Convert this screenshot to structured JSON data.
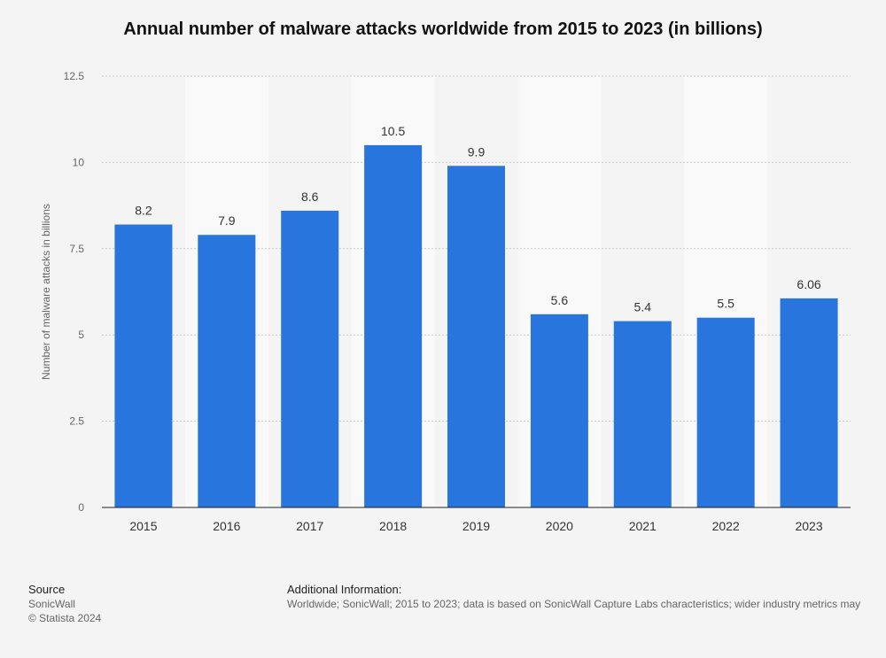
{
  "chart_data": {
    "type": "bar",
    "title": "Annual number of malware attacks worldwide from 2015 to 2023 (in billions)",
    "xlabel": "",
    "ylabel": "Number of malware attacks in billions",
    "categories": [
      "2015",
      "2016",
      "2017",
      "2018",
      "2019",
      "2020",
      "2021",
      "2022",
      "2023"
    ],
    "values": [
      8.2,
      7.9,
      8.6,
      10.5,
      9.9,
      5.6,
      5.4,
      5.5,
      6.06
    ],
    "data_labels": [
      "8.2",
      "7.9",
      "8.6",
      "10.5",
      "9.9",
      "5.6",
      "5.4",
      "5.5",
      "6.06"
    ],
    "ylim": [
      0,
      12.5
    ],
    "yticks": [
      0,
      2.5,
      5,
      7.5,
      10,
      12.5
    ],
    "ytick_labels": [
      "0",
      "2.5",
      "5",
      "7.5",
      "10",
      "12.5"
    ],
    "grid": true,
    "legend": "none",
    "colors": {
      "bar": "#2876dd",
      "band": "#f9f9f9",
      "background": "#f4f4f4"
    }
  },
  "footer": {
    "source_heading": "Source",
    "source_name": "SonicWall",
    "copyright": "© Statista 2024",
    "additional_heading": "Additional Information:",
    "additional_text": "Worldwide; SonicWall; 2015 to 2023; data is based on SonicWall Capture Labs characteristics; wider industry metrics may"
  }
}
